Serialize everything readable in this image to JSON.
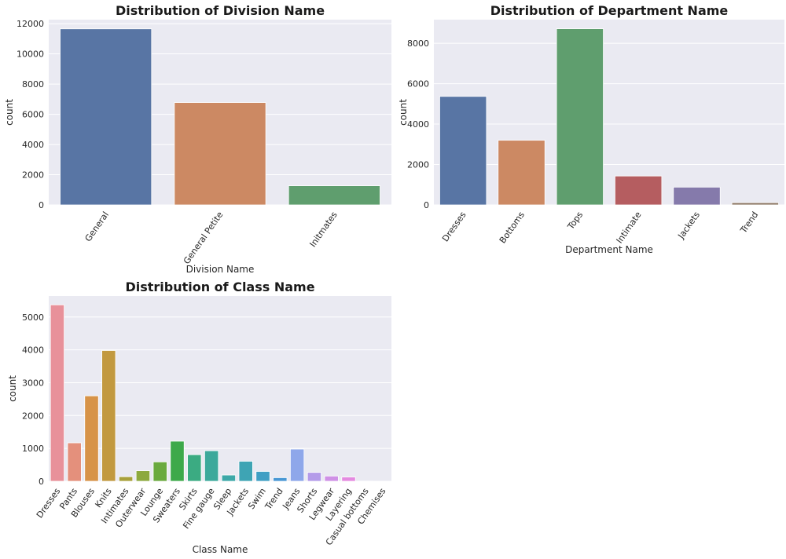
{
  "chart_data": [
    {
      "type": "bar",
      "title": "Distribution of Division Name",
      "xlabel": "Division Name",
      "ylabel": "count",
      "categories": [
        "General",
        "General Petite",
        "Initmates"
      ],
      "values": [
        11660,
        6780,
        1270
      ],
      "ylim": [
        0,
        12270
      ],
      "yticks": [
        0,
        2000,
        4000,
        6000,
        8000,
        10000,
        12000
      ],
      "colors": [
        "#5875a4",
        "#cc8963",
        "#5f9e6e"
      ],
      "grid": true
    },
    {
      "type": "bar",
      "title": "Distribution of Department Name",
      "xlabel": "Department Name",
      "ylabel": "count",
      "categories": [
        "Dresses",
        "Bottoms",
        "Tops",
        "Intimate",
        "Jackets",
        "Trend"
      ],
      "values": [
        5370,
        3200,
        8720,
        1430,
        880,
        110
      ],
      "ylim": [
        0,
        9170
      ],
      "yticks": [
        0,
        2000,
        4000,
        6000,
        8000
      ],
      "colors": [
        "#5875a4",
        "#cc8963",
        "#5f9e6e",
        "#b55d60",
        "#857aab",
        "#8d7866"
      ],
      "grid": true
    },
    {
      "type": "bar",
      "title": "Distribution of Class Name",
      "xlabel": "Class Name",
      "ylabel": "count",
      "categories": [
        "Dresses",
        "Pants",
        "Blouses",
        "Knits",
        "Intimates",
        "Outerwear",
        "Lounge",
        "Sweaters",
        "Skirts",
        "Fine gauge",
        "Sleep",
        "Jackets",
        "Swim",
        "Trend",
        "Jeans",
        "Shorts",
        "Legwear",
        "Layering",
        "Casual bottoms",
        "Chemises"
      ],
      "values": [
        5370,
        1170,
        2600,
        3980,
        140,
        320,
        590,
        1220,
        810,
        930,
        190,
        610,
        300,
        110,
        980,
        270,
        160,
        130,
        5,
        2
      ],
      "ylim": [
        0,
        5640
      ],
      "yticks": [
        0,
        1000,
        2000,
        3000,
        4000,
        5000
      ],
      "colors": [
        "#e8919a",
        "#e4907c",
        "#d79348",
        "#c2993f",
        "#a8a03b",
        "#8da93e",
        "#6aaa3e",
        "#3da94a",
        "#3bab82",
        "#3ca99b",
        "#3da8a8",
        "#3ea4b4",
        "#3f9fc4",
        "#4897d4",
        "#8ea7ea",
        "#b49be9",
        "#cf91e6",
        "#e48ae0",
        "#e889c8",
        "#e98cb0"
      ],
      "grid": true
    }
  ]
}
